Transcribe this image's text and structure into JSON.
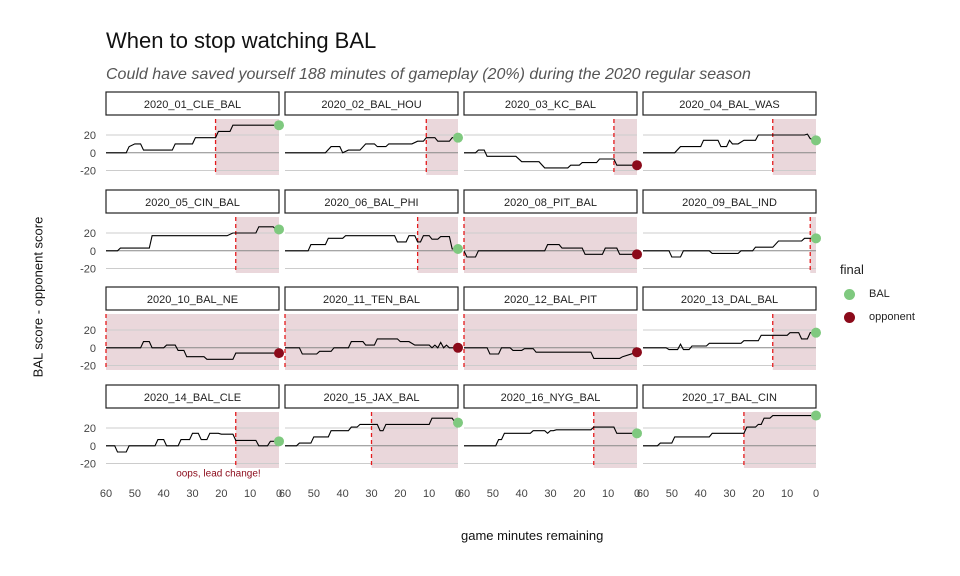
{
  "title": "When to stop watching BAL",
  "subtitle": "Could have saved yourself 188 minutes of gameplay (20%) during the 2020 regular season",
  "colors": {
    "bal": "#7fc97f",
    "opponent": "#8b0a1a",
    "cutoff": "#e41a1c",
    "shade": "#ead7db",
    "line": "#000000",
    "grid": "#cccccc",
    "zero": "#888888"
  },
  "chart_data": {
    "type": "line",
    "facet": "small-multiples",
    "xlabel": "game minutes remaining",
    "ylabel": "BAL score - opponent score",
    "xlim": [
      60,
      0
    ],
    "ylim": [
      -25,
      38
    ],
    "x_ticks": [
      60,
      50,
      40,
      30,
      20,
      10,
      0
    ],
    "y_ticks": [
      20,
      0,
      -20
    ],
    "legend": {
      "title": "final",
      "position": "right",
      "entries": [
        {
          "label": "BAL",
          "key": "bal"
        },
        {
          "label": "opponent",
          "key": "opponent"
        }
      ]
    },
    "annotation": {
      "panel": "2020_14_BAL_CLE",
      "text": "oops, lead change!",
      "x": 21,
      "y": -30
    },
    "games": [
      {
        "name": "2020_01_CLE_BAL",
        "cutoff": 22,
        "final": "bal",
        "series": [
          [
            60,
            0
          ],
          [
            53,
            0
          ],
          [
            52,
            7
          ],
          [
            50,
            10
          ],
          [
            48,
            10
          ],
          [
            47,
            3
          ],
          [
            37,
            3
          ],
          [
            36,
            10
          ],
          [
            30,
            10
          ],
          [
            29,
            17
          ],
          [
            22,
            17
          ],
          [
            21,
            24
          ],
          [
            17,
            24
          ],
          [
            16,
            31
          ],
          [
            0,
            31
          ]
        ]
      },
      {
        "name": "2020_02_BAL_HOU",
        "cutoff": 11,
        "final": "bal",
        "series": [
          [
            60,
            0
          ],
          [
            46,
            0
          ],
          [
            44,
            7
          ],
          [
            41,
            7
          ],
          [
            40,
            0
          ],
          [
            38,
            3
          ],
          [
            34,
            3
          ],
          [
            32,
            10
          ],
          [
            29,
            10
          ],
          [
            28,
            7
          ],
          [
            25,
            7
          ],
          [
            24,
            10
          ],
          [
            16,
            10
          ],
          [
            14,
            13
          ],
          [
            12,
            13
          ],
          [
            11,
            17
          ],
          [
            8,
            17
          ],
          [
            7,
            13
          ],
          [
            3,
            13
          ],
          [
            2,
            17
          ],
          [
            0,
            17
          ]
        ]
      },
      {
        "name": "2020_03_KC_BAL",
        "cutoff": 8,
        "final": "opponent",
        "series": [
          [
            60,
            0
          ],
          [
            56,
            0
          ],
          [
            55,
            3
          ],
          [
            53,
            3
          ],
          [
            52,
            -4
          ],
          [
            42,
            -4
          ],
          [
            40,
            -10
          ],
          [
            34,
            -10
          ],
          [
            32,
            -17
          ],
          [
            24,
            -17
          ],
          [
            23,
            -14
          ],
          [
            20,
            -14
          ],
          [
            19,
            -11
          ],
          [
            14,
            -11
          ],
          [
            13,
            -7
          ],
          [
            8,
            -7
          ],
          [
            7,
            -14
          ],
          [
            0,
            -14
          ]
        ]
      },
      {
        "name": "2020_04_BAL_WAS",
        "cutoff": 15,
        "final": "bal",
        "series": [
          [
            60,
            0
          ],
          [
            49,
            0
          ],
          [
            47,
            7
          ],
          [
            40,
            7
          ],
          [
            39,
            14
          ],
          [
            34,
            14
          ],
          [
            33,
            7
          ],
          [
            31,
            7
          ],
          [
            30,
            14
          ],
          [
            29,
            10
          ],
          [
            27,
            10
          ],
          [
            25,
            14
          ],
          [
            21,
            14
          ],
          [
            20,
            20
          ],
          [
            4,
            20
          ],
          [
            3,
            21
          ],
          [
            2,
            16
          ],
          [
            0,
            14
          ]
        ]
      },
      {
        "name": "2020_05_CIN_BAL",
        "cutoff": 15,
        "final": "bal",
        "series": [
          [
            60,
            0
          ],
          [
            56,
            0
          ],
          [
            55,
            3
          ],
          [
            45,
            3
          ],
          [
            44,
            17
          ],
          [
            18,
            17
          ],
          [
            16,
            20
          ],
          [
            8,
            20
          ],
          [
            7,
            27
          ],
          [
            2,
            27
          ],
          [
            1,
            24
          ],
          [
            0,
            24
          ]
        ]
      },
      {
        "name": "2020_06_BAL_PHI",
        "cutoff": 14,
        "final": "bal",
        "series": [
          [
            60,
            0
          ],
          [
            52,
            0
          ],
          [
            51,
            7
          ],
          [
            46,
            7
          ],
          [
            45,
            14
          ],
          [
            40,
            14
          ],
          [
            39,
            17
          ],
          [
            22,
            17
          ],
          [
            21,
            10
          ],
          [
            18,
            10
          ],
          [
            17,
            17
          ],
          [
            15,
            17
          ],
          [
            14,
            10
          ],
          [
            13,
            10
          ],
          [
            12,
            17
          ],
          [
            10,
            17
          ],
          [
            9,
            13
          ],
          [
            7,
            13
          ],
          [
            6,
            16
          ],
          [
            3,
            16
          ],
          [
            2,
            2
          ],
          [
            0,
            2
          ]
        ]
      },
      {
        "name": "2020_08_PIT_BAL",
        "cutoff": 60,
        "final": "opponent",
        "series": [
          [
            60,
            0
          ],
          [
            59,
            -7
          ],
          [
            56,
            -7
          ],
          [
            55,
            0
          ],
          [
            32,
            0
          ],
          [
            31,
            7
          ],
          [
            27,
            7
          ],
          [
            26,
            3
          ],
          [
            19,
            3
          ],
          [
            18,
            -4
          ],
          [
            12,
            -4
          ],
          [
            11,
            3
          ],
          [
            7,
            3
          ],
          [
            6,
            -4
          ],
          [
            0,
            -4
          ]
        ]
      },
      {
        "name": "2020_09_BAL_IND",
        "cutoff": 2,
        "final": "bal",
        "series": [
          [
            60,
            0
          ],
          [
            51,
            0
          ],
          [
            50,
            -7
          ],
          [
            47,
            -7
          ],
          [
            46,
            0
          ],
          [
            37,
            0
          ],
          [
            36,
            -3
          ],
          [
            27,
            -3
          ],
          [
            26,
            0
          ],
          [
            22,
            0
          ],
          [
            21,
            4
          ],
          [
            15,
            4
          ],
          [
            13,
            11
          ],
          [
            5,
            11
          ],
          [
            4,
            14
          ],
          [
            0,
            14
          ]
        ]
      },
      {
        "name": "2020_10_BAL_NE",
        "cutoff": 60,
        "final": "opponent",
        "series": [
          [
            60,
            0
          ],
          [
            48,
            0
          ],
          [
            47,
            7
          ],
          [
            45,
            7
          ],
          [
            44,
            0
          ],
          [
            40,
            0
          ],
          [
            39,
            3
          ],
          [
            36,
            3
          ],
          [
            35,
            -3
          ],
          [
            33,
            -3
          ],
          [
            32,
            -10
          ],
          [
            26,
            -10
          ],
          [
            25,
            -13
          ],
          [
            16,
            -13
          ],
          [
            15,
            -6
          ],
          [
            0,
            -6
          ]
        ]
      },
      {
        "name": "2020_11_TEN_BAL",
        "cutoff": 60,
        "final": "opponent",
        "series": [
          [
            60,
            0
          ],
          [
            55,
            0
          ],
          [
            54,
            -7
          ],
          [
            49,
            -7
          ],
          [
            48,
            -4
          ],
          [
            44,
            -4
          ],
          [
            43,
            0
          ],
          [
            38,
            0
          ],
          [
            37,
            7
          ],
          [
            33,
            7
          ],
          [
            32,
            3
          ],
          [
            29,
            3
          ],
          [
            28,
            10
          ],
          [
            21,
            10
          ],
          [
            20,
            7
          ],
          [
            17,
            7
          ],
          [
            15,
            3
          ],
          [
            10,
            3
          ],
          [
            9,
            0
          ],
          [
            8,
            3
          ],
          [
            7,
            0
          ],
          [
            6,
            6
          ],
          [
            5,
            0
          ],
          [
            4,
            3
          ],
          [
            3,
            0
          ],
          [
            0,
            0
          ]
        ]
      },
      {
        "name": "2020_12_BAL_PIT",
        "cutoff": 60,
        "final": "opponent",
        "series": [
          [
            60,
            0
          ],
          [
            52,
            0
          ],
          [
            51,
            -7
          ],
          [
            48,
            -7
          ],
          [
            47,
            0
          ],
          [
            44,
            0
          ],
          [
            43,
            -3
          ],
          [
            40,
            -3
          ],
          [
            39,
            -1
          ],
          [
            36,
            -1
          ],
          [
            35,
            -5
          ],
          [
            16,
            -5
          ],
          [
            15,
            -12
          ],
          [
            6,
            -12
          ],
          [
            5,
            -10
          ],
          [
            0,
            -5
          ]
        ]
      },
      {
        "name": "2020_13_DAL_BAL",
        "cutoff": 15,
        "final": "bal",
        "series": [
          [
            60,
            0
          ],
          [
            52,
            0
          ],
          [
            51,
            -2
          ],
          [
            48,
            -2
          ],
          [
            47,
            4
          ],
          [
            46,
            -2
          ],
          [
            44,
            -2
          ],
          [
            43,
            2
          ],
          [
            38,
            2
          ],
          [
            37,
            5
          ],
          [
            26,
            5
          ],
          [
            25,
            8
          ],
          [
            20,
            8
          ],
          [
            19,
            14
          ],
          [
            10,
            14
          ],
          [
            9,
            17
          ],
          [
            6,
            17
          ],
          [
            5,
            10
          ],
          [
            3,
            10
          ],
          [
            2,
            17
          ],
          [
            0,
            17
          ]
        ]
      },
      {
        "name": "2020_14_BAL_CLE",
        "cutoff": 15,
        "final": "bal",
        "series": [
          [
            60,
            0
          ],
          [
            57,
            0
          ],
          [
            56,
            -7
          ],
          [
            53,
            -7
          ],
          [
            52,
            0
          ],
          [
            43,
            0
          ],
          [
            42,
            7
          ],
          [
            40,
            7
          ],
          [
            39,
            0
          ],
          [
            35,
            0
          ],
          [
            34,
            7
          ],
          [
            31,
            7
          ],
          [
            30,
            14
          ],
          [
            28,
            14
          ],
          [
            27,
            7
          ],
          [
            25,
            7
          ],
          [
            24,
            14
          ],
          [
            21,
            14
          ],
          [
            20,
            13
          ],
          [
            16,
            13
          ],
          [
            15,
            6
          ],
          [
            8,
            6
          ],
          [
            7,
            0
          ],
          [
            4,
            0
          ],
          [
            3,
            5
          ],
          [
            0,
            5
          ]
        ]
      },
      {
        "name": "2020_15_JAX_BAL",
        "cutoff": 30,
        "final": "bal",
        "series": [
          [
            60,
            0
          ],
          [
            56,
            0
          ],
          [
            55,
            3
          ],
          [
            51,
            3
          ],
          [
            50,
            10
          ],
          [
            45,
            10
          ],
          [
            44,
            17
          ],
          [
            38,
            17
          ],
          [
            37,
            21
          ],
          [
            35,
            21
          ],
          [
            34,
            24
          ],
          [
            28,
            24
          ],
          [
            27,
            17
          ],
          [
            26,
            17
          ],
          [
            25,
            24
          ],
          [
            10,
            24
          ],
          [
            9,
            31
          ],
          [
            2,
            31
          ],
          [
            1,
            26
          ],
          [
            0,
            26
          ]
        ]
      },
      {
        "name": "2020_16_NYG_BAL",
        "cutoff": 15,
        "final": "bal",
        "series": [
          [
            60,
            0
          ],
          [
            49,
            0
          ],
          [
            48,
            7
          ],
          [
            47,
            7
          ],
          [
            46,
            14
          ],
          [
            37,
            14
          ],
          [
            36,
            17
          ],
          [
            32,
            17
          ],
          [
            31,
            14
          ],
          [
            30,
            17
          ],
          [
            29,
            17
          ],
          [
            28,
            18
          ],
          [
            16,
            18
          ],
          [
            15,
            21
          ],
          [
            8,
            21
          ],
          [
            7,
            14
          ],
          [
            0,
            14
          ]
        ]
      },
      {
        "name": "2020_17_BAL_CIN",
        "cutoff": 25,
        "final": "bal",
        "series": [
          [
            60,
            0
          ],
          [
            55,
            0
          ],
          [
            54,
            3
          ],
          [
            50,
            3
          ],
          [
            49,
            10
          ],
          [
            37,
            10
          ],
          [
            36,
            14
          ],
          [
            25,
            14
          ],
          [
            24,
            21
          ],
          [
            21,
            21
          ],
          [
            20,
            24
          ],
          [
            19,
            24
          ],
          [
            18,
            31
          ],
          [
            16,
            31
          ],
          [
            15,
            34
          ],
          [
            0,
            34
          ]
        ]
      }
    ]
  }
}
